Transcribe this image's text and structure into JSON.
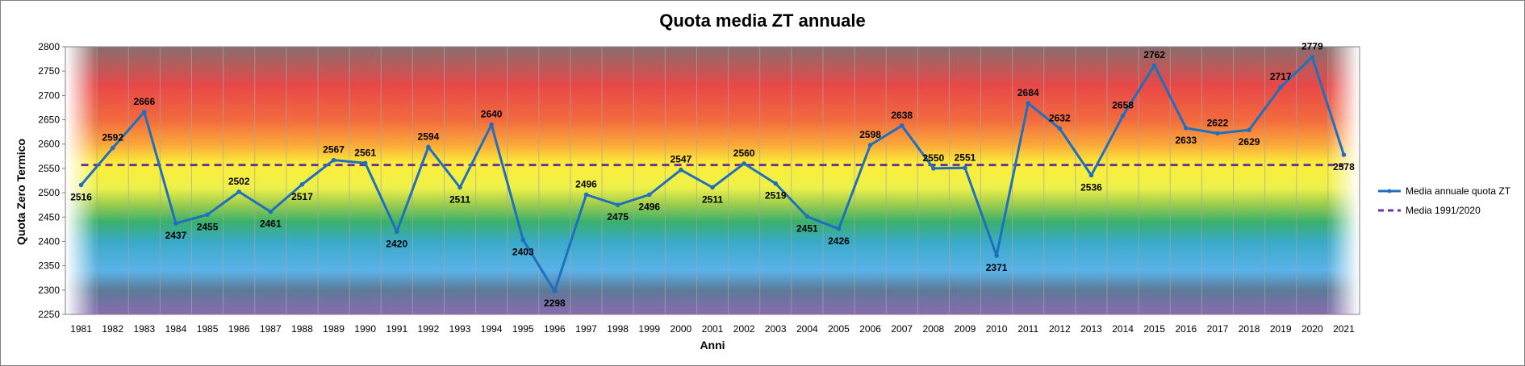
{
  "chart_data": {
    "type": "line",
    "title": "Quota media ZT annuale",
    "xlabel": "Anni",
    "ylabel": "Quota Zero Termico",
    "ylim": [
      2250,
      2800
    ],
    "ytick_step": 50,
    "grid": "vertical",
    "legend_position": "right",
    "x": [
      1981,
      1982,
      1983,
      1984,
      1985,
      1986,
      1987,
      1988,
      1989,
      1990,
      1991,
      1992,
      1993,
      1994,
      1995,
      1996,
      1997,
      1998,
      1999,
      2000,
      2001,
      2002,
      2003,
      2004,
      2005,
      2006,
      2007,
      2008,
      2009,
      2010,
      2011,
      2012,
      2013,
      2014,
      2015,
      2016,
      2017,
      2018,
      2019,
      2020,
      2021
    ],
    "series": [
      {
        "name": "Media annuale quota ZT",
        "color": "#1f6fbf",
        "values": [
          2516,
          2592,
          2666,
          2437,
          2455,
          2502,
          2461,
          2517,
          2567,
          2561,
          2420,
          2594,
          2511,
          2640,
          2403,
          2298,
          2496,
          2475,
          2496,
          2547,
          2511,
          2560,
          2519,
          2451,
          2426,
          2598,
          2638,
          2550,
          2551,
          2371,
          2684,
          2632,
          2536,
          2658,
          2762,
          2633,
          2622,
          2629,
          2717,
          2779,
          2578
        ],
        "label_below": [
          1981,
          1984,
          1985,
          1987,
          1988,
          1991,
          1993,
          1995,
          1996,
          1998,
          1999,
          2001,
          2003,
          2004,
          2005,
          2010,
          2013,
          2016,
          2018,
          2021
        ]
      },
      {
        "name": "Media 1991/2020",
        "color": "#7030a0",
        "style": "dashed",
        "value": 2557
      }
    ],
    "background_gradient": [
      {
        "value": 2800,
        "color": "#8a6e6e"
      },
      {
        "value": 2720,
        "color": "#e84848"
      },
      {
        "value": 2650,
        "color": "#f26a3e"
      },
      {
        "value": 2600,
        "color": "#fba63a"
      },
      {
        "value": 2560,
        "color": "#fbee3a"
      },
      {
        "value": 2510,
        "color": "#eef04a"
      },
      {
        "value": 2475,
        "color": "#9acc4e"
      },
      {
        "value": 2440,
        "color": "#3ab06c"
      },
      {
        "value": 2400,
        "color": "#3aaac8"
      },
      {
        "value": 2340,
        "color": "#5ab2e8"
      },
      {
        "value": 2300,
        "color": "#5c7a98"
      },
      {
        "value": 2250,
        "color": "#8a6aae"
      }
    ]
  }
}
